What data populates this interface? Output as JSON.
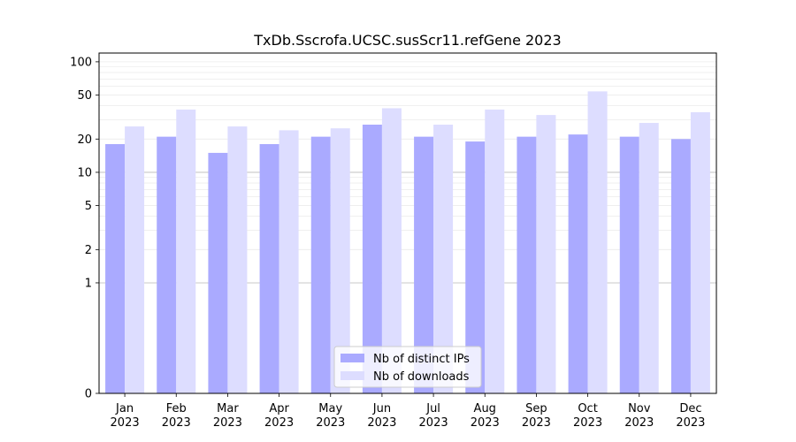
{
  "chart_data": {
    "type": "bar",
    "title": "TxDb.Sscrofa.UCSC.susScr11.refGene 2023",
    "xlabel": "",
    "ylabel": "",
    "yscale": "symlog",
    "ylim": [
      0,
      120
    ],
    "yticks": [
      0,
      1,
      2,
      5,
      10,
      20,
      50,
      100
    ],
    "categories": [
      "Jan\n2023",
      "Feb\n2023",
      "Mar\n2023",
      "Apr\n2023",
      "May\n2023",
      "Jun\n2023",
      "Jul\n2023",
      "Aug\n2023",
      "Sep\n2023",
      "Oct\n2023",
      "Nov\n2023",
      "Dec\n2023"
    ],
    "series": [
      {
        "name": "Nb of distinct IPs",
        "color": "#aaaaff",
        "values": [
          18,
          21,
          15,
          18,
          21,
          27,
          21,
          19,
          21,
          22,
          21,
          20
        ]
      },
      {
        "name": "Nb of downloads",
        "color": "#ddddff",
        "values": [
          26,
          37,
          26,
          24,
          25,
          38,
          27,
          37,
          33,
          54,
          28,
          35
        ]
      }
    ],
    "legend": "lower center",
    "grid": true
  }
}
